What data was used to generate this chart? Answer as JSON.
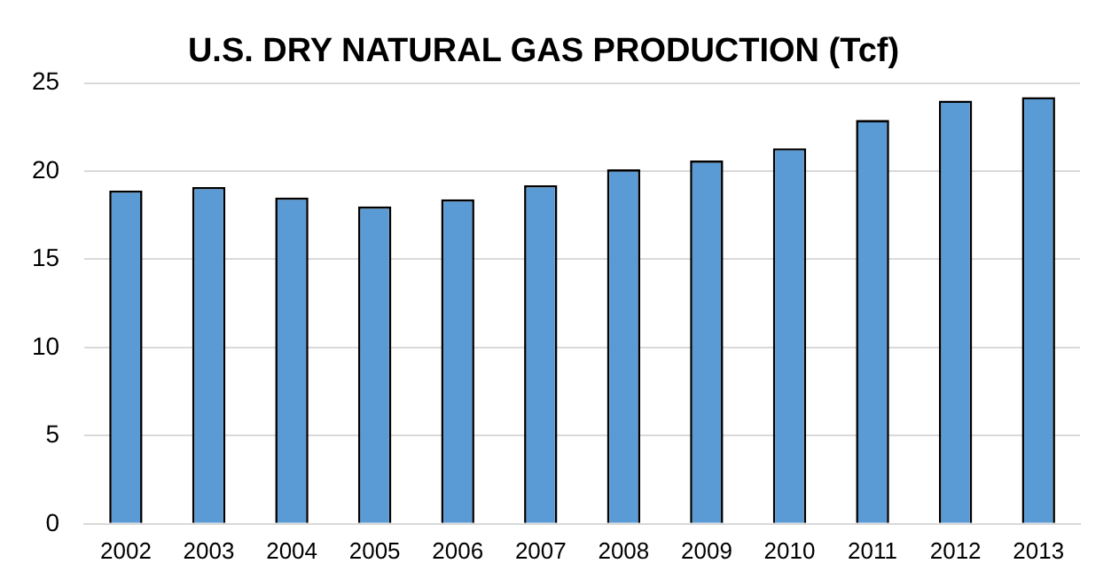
{
  "chart_data": {
    "type": "bar",
    "title": "U.S. DRY NATURAL GAS PRODUCTION (Tcf)",
    "categories": [
      "2002",
      "2003",
      "2004",
      "2005",
      "2006",
      "2007",
      "2008",
      "2009",
      "2010",
      "2011",
      "2012",
      "2013"
    ],
    "values": [
      18.9,
      19.1,
      18.5,
      18.0,
      18.4,
      19.2,
      20.1,
      20.6,
      21.3,
      22.9,
      24.0,
      24.2
    ],
    "color": "#5b9bd5",
    "ylim": [
      0,
      25
    ],
    "yticks": [
      0,
      5,
      10,
      15,
      20,
      25
    ],
    "grid": "y",
    "legend": false
  }
}
